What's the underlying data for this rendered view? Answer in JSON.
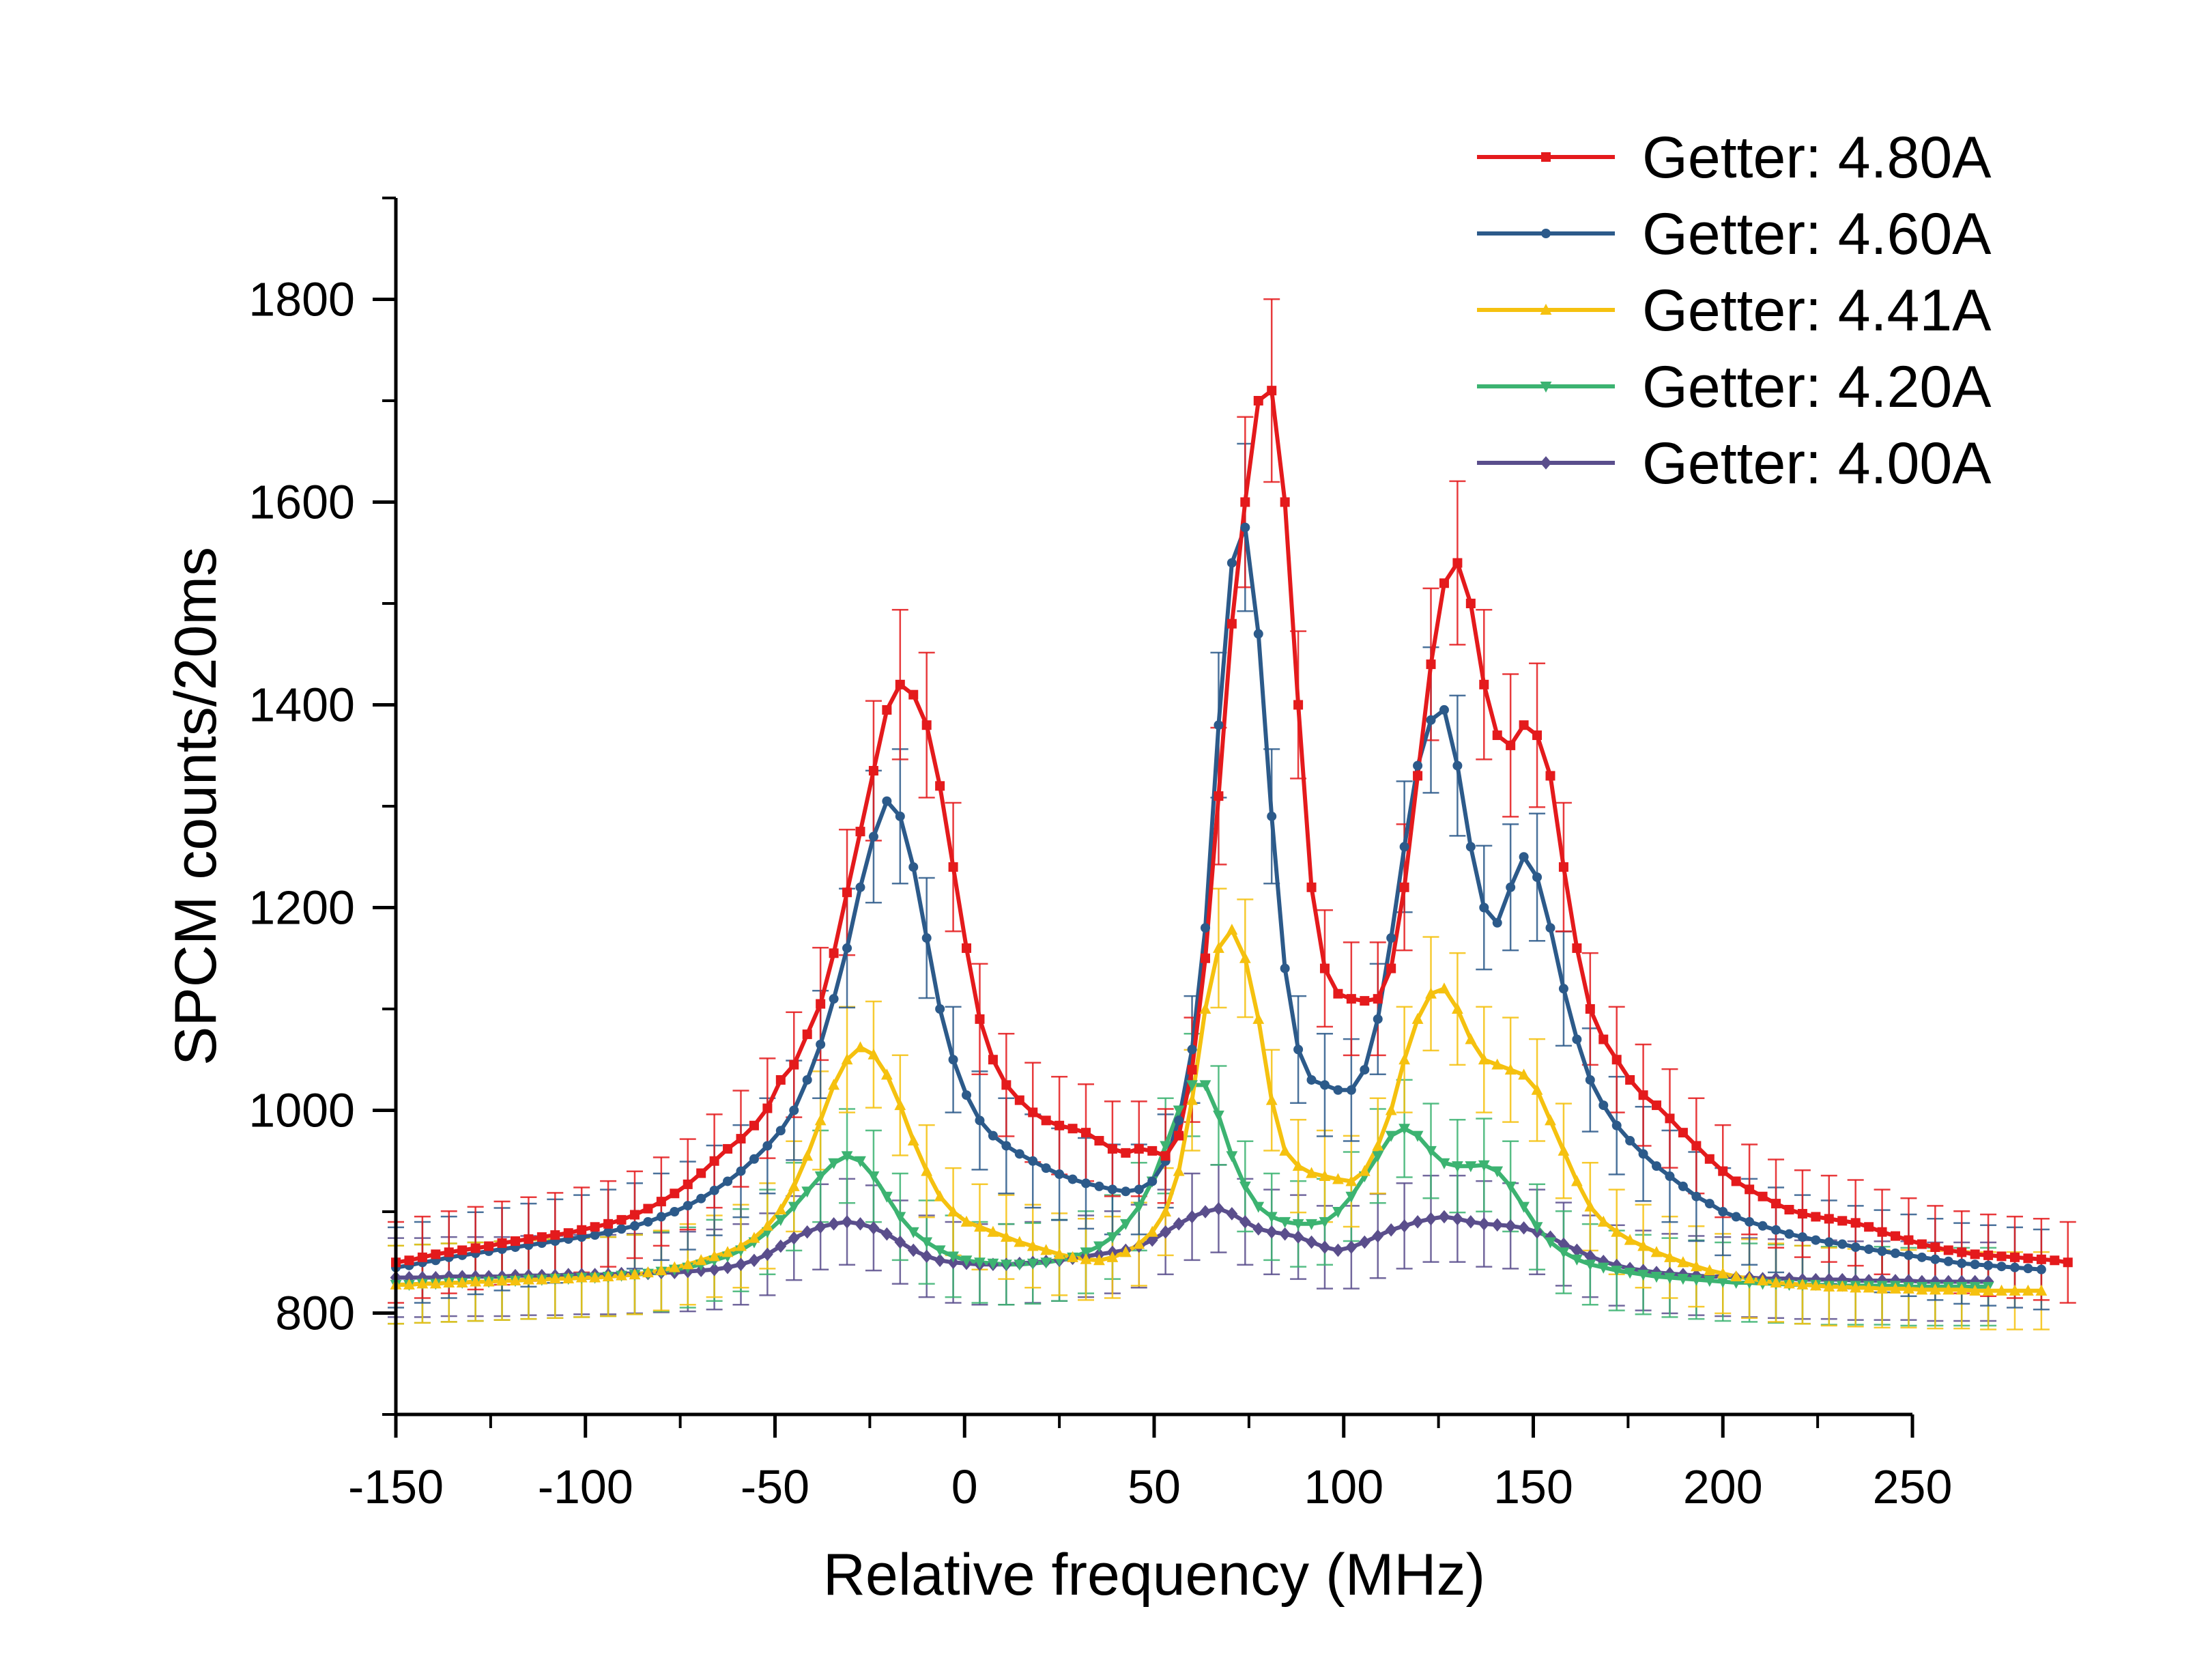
{
  "chart_data": {
    "type": "line",
    "title": "",
    "xlabel": "Relative frequency (MHz)",
    "ylabel": "SPCM counts/20ms",
    "xlim": [
      -150,
      250
    ],
    "ylim": [
      700,
      1900
    ],
    "xticks": [
      -150,
      -100,
      -50,
      0,
      50,
      100,
      150,
      200,
      250
    ],
    "yticks": [
      800,
      1000,
      1200,
      1400,
      1600,
      1800
    ],
    "x_start": -150,
    "x_step": 3.5,
    "legend_position": "top-right",
    "series": [
      {
        "name": "Getter: 4.80A",
        "color": "#e41a1c",
        "marker": "square",
        "values": [
          850,
          852,
          855,
          858,
          860,
          862,
          864,
          866,
          869,
          871,
          873,
          875,
          877,
          879,
          882,
          885,
          888,
          892,
          897,
          903,
          910,
          918,
          927,
          938,
          950,
          962,
          972,
          985,
          1002,
          1030,
          1045,
          1075,
          1105,
          1155,
          1215,
          1275,
          1335,
          1395,
          1420,
          1410,
          1380,
          1320,
          1240,
          1160,
          1090,
          1050,
          1025,
          1010,
          998,
          990,
          985,
          982,
          978,
          970,
          962,
          958,
          962,
          960,
          955,
          975,
          1040,
          1150,
          1310,
          1480,
          1600,
          1700,
          1710,
          1600,
          1400,
          1220,
          1140,
          1115,
          1110,
          1108,
          1110,
          1140,
          1220,
          1330,
          1440,
          1520,
          1540,
          1500,
          1420,
          1370,
          1360,
          1380,
          1370,
          1330,
          1240,
          1160,
          1100,
          1070,
          1050,
          1030,
          1015,
          1005,
          992,
          978,
          965,
          952,
          940,
          930,
          922,
          915,
          908,
          902,
          898,
          895,
          893,
          891,
          889,
          885,
          880,
          876,
          872,
          868,
          865,
          862,
          860,
          858,
          857,
          856,
          855,
          854,
          853,
          852,
          850
        ]
      },
      {
        "name": "Getter: 4.60A",
        "color": "#2c5a8a",
        "marker": "circle",
        "values": [
          845,
          847,
          850,
          852,
          855,
          857,
          859,
          861,
          863,
          865,
          867,
          869,
          871,
          873,
          875,
          877,
          880,
          883,
          886,
          890,
          895,
          900,
          906,
          913,
          921,
          930,
          940,
          952,
          965,
          980,
          1000,
          1030,
          1065,
          1110,
          1160,
          1220,
          1270,
          1305,
          1290,
          1240,
          1170,
          1100,
          1050,
          1015,
          990,
          975,
          965,
          957,
          950,
          943,
          937,
          932,
          928,
          925,
          922,
          920,
          922,
          930,
          950,
          990,
          1060,
          1180,
          1380,
          1540,
          1575,
          1470,
          1290,
          1140,
          1060,
          1030,
          1025,
          1020,
          1020,
          1040,
          1090,
          1170,
          1260,
          1340,
          1385,
          1395,
          1340,
          1260,
          1200,
          1185,
          1220,
          1250,
          1230,
          1180,
          1120,
          1070,
          1030,
          1005,
          985,
          970,
          957,
          945,
          935,
          925,
          915,
          908,
          900,
          895,
          890,
          886,
          882,
          878,
          875,
          872,
          870,
          868,
          865,
          863,
          861,
          859,
          857,
          855,
          853,
          851,
          849,
          848,
          847,
          846,
          845,
          844,
          843
        ]
      },
      {
        "name": "Getter: 4.41A",
        "color": "#f5c10f",
        "marker": "triangle-up",
        "values": [
          828,
          828,
          829,
          829,
          830,
          830,
          831,
          831,
          832,
          832,
          833,
          833,
          834,
          834,
          835,
          835,
          836,
          837,
          838,
          840,
          842,
          845,
          848,
          852,
          856,
          860,
          866,
          874,
          886,
          902,
          925,
          955,
          990,
          1025,
          1050,
          1062,
          1055,
          1035,
          1005,
          970,
          940,
          915,
          900,
          890,
          885,
          880,
          875,
          870,
          866,
          862,
          858,
          855,
          853,
          852,
          855,
          860,
          868,
          880,
          900,
          940,
          1010,
          1100,
          1160,
          1178,
          1150,
          1090,
          1010,
          960,
          945,
          938,
          935,
          932,
          930,
          940,
          965,
          1000,
          1050,
          1090,
          1115,
          1120,
          1100,
          1070,
          1050,
          1045,
          1040,
          1035,
          1020,
          990,
          960,
          930,
          905,
          890,
          880,
          872,
          866,
          860,
          855,
          850,
          846,
          842,
          839,
          836,
          834,
          832,
          830,
          829,
          828,
          827,
          826,
          826,
          825,
          825,
          824,
          824,
          824,
          823,
          823,
          823,
          823,
          822,
          822,
          822,
          822,
          822,
          822
        ]
      },
      {
        "name": "Getter: 4.20A",
        "color": "#3cb371",
        "marker": "triangle-down",
        "values": [
          828,
          828,
          829,
          829,
          830,
          830,
          831,
          831,
          832,
          832,
          833,
          833,
          834,
          834,
          835,
          835,
          836,
          837,
          838,
          839,
          841,
          843,
          845,
          848,
          852,
          856,
          862,
          870,
          880,
          892,
          905,
          920,
          935,
          948,
          955,
          950,
          935,
          915,
          895,
          880,
          870,
          862,
          856,
          852,
          850,
          849,
          848,
          848,
          849,
          850,
          852,
          855,
          860,
          866,
          875,
          888,
          905,
          930,
          965,
          1000,
          1025,
          1025,
          995,
          955,
          925,
          905,
          895,
          890,
          888,
          888,
          890,
          900,
          915,
          935,
          955,
          975,
          982,
          975,
          960,
          948,
          945,
          945,
          946,
          940,
          925,
          905,
          885,
          870,
          860,
          853,
          848,
          845,
          842,
          840,
          838,
          836,
          835,
          834,
          833,
          832,
          831,
          830,
          830,
          829,
          829,
          828,
          828,
          828,
          827,
          827,
          827,
          827,
          827,
          827,
          826,
          826,
          826,
          826,
          826,
          826,
          826
        ]
      },
      {
        "name": "Getter: 4.00A",
        "color": "#5a4e8c",
        "marker": "diamond",
        "values": [
          835,
          835,
          835,
          835,
          836,
          836,
          836,
          836,
          836,
          837,
          837,
          837,
          837,
          838,
          838,
          838,
          838,
          839,
          839,
          839,
          840,
          840,
          841,
          842,
          843,
          845,
          848,
          852,
          858,
          866,
          874,
          880,
          885,
          888,
          890,
          888,
          884,
          878,
          870,
          862,
          856,
          852,
          850,
          849,
          848,
          848,
          848,
          849,
          850,
          851,
          852,
          854,
          856,
          858,
          860,
          862,
          866,
          872,
          880,
          888,
          895,
          900,
          903,
          898,
          890,
          883,
          880,
          878,
          875,
          870,
          865,
          862,
          865,
          870,
          876,
          882,
          886,
          890,
          893,
          895,
          893,
          890,
          888,
          887,
          886,
          884,
          880,
          875,
          868,
          862,
          856,
          851,
          847,
          844,
          842,
          840,
          839,
          838,
          837,
          836,
          836,
          835,
          835,
          834,
          834,
          834,
          833,
          833,
          833,
          833,
          832,
          832,
          832,
          832,
          832,
          831,
          831,
          831,
          831,
          831,
          831
        ]
      }
    ]
  }
}
